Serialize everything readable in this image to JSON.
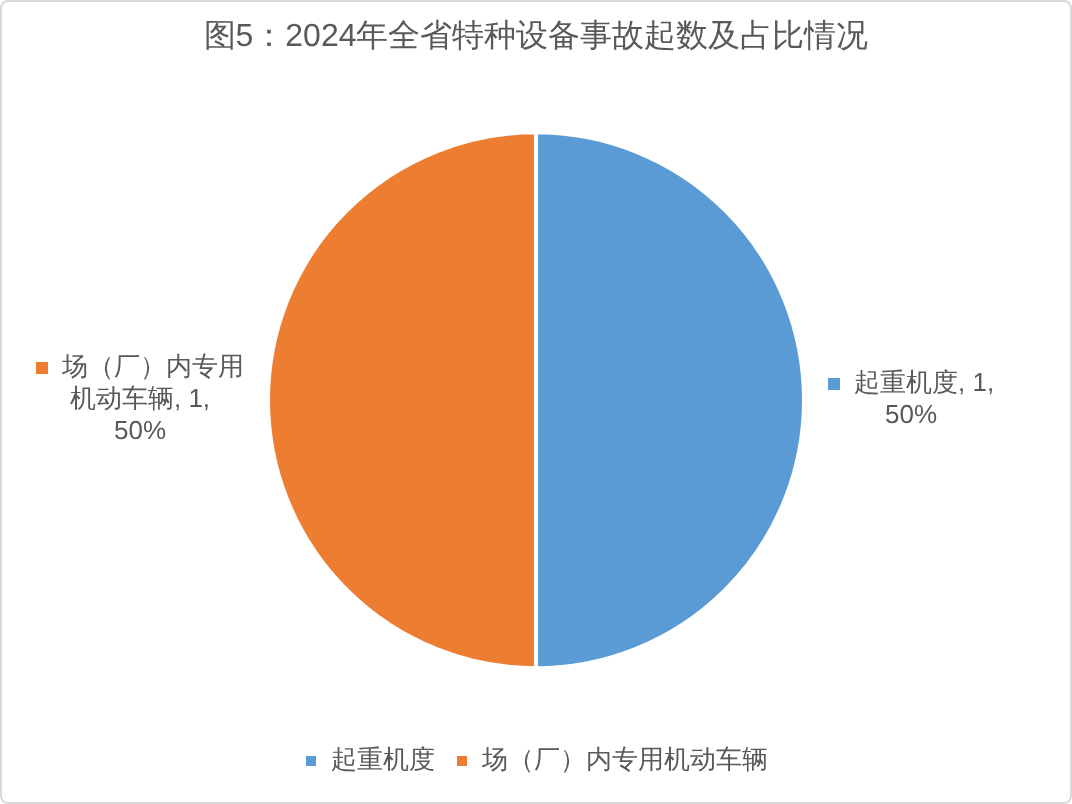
{
  "chart_data": {
    "type": "pie",
    "title": "图5：2024年全省特种设备事故起数及占比情况",
    "categories": [
      "起重机度",
      "场（厂）内专用机动车辆"
    ],
    "values": [
      1,
      1
    ],
    "colors": [
      "#5b9bd5",
      "#ed7d31"
    ],
    "value_labels": [
      "起重机度, 1, 50%",
      "场（厂）内专用机动车辆, 1, 50%"
    ],
    "legend": "bottom"
  }
}
